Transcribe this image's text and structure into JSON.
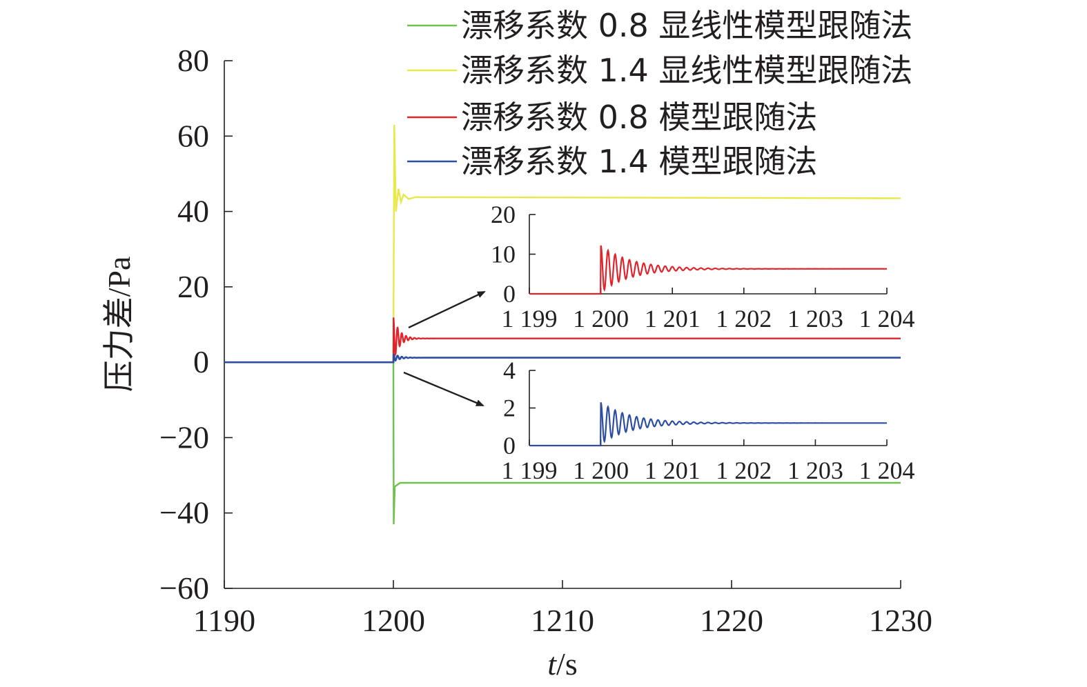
{
  "chart_data": [
    {
      "type": "line",
      "id": "main",
      "xlabel_italic": "t",
      "xlabel_unit": "/s",
      "ylabel": "压力差/Pa",
      "xlim": [
        1190,
        1230
      ],
      "ylim": [
        -60,
        80
      ],
      "xticks": [
        1190,
        1200,
        1210,
        1220,
        1230
      ],
      "yticks": [
        -60,
        -40,
        -20,
        0,
        20,
        40,
        60,
        80
      ],
      "xtick_labels": [
        "1190",
        "1200",
        "1210",
        "1220",
        "1230"
      ],
      "ytick_labels": [
        "−60",
        "−40",
        "−20",
        "0",
        "20",
        "40",
        "60",
        "80"
      ],
      "grid": false,
      "legend_position": "top-right",
      "step_time": 1200,
      "series": [
        {
          "name": "漂移系数 0.8 显线性模型跟随法",
          "color": "#6cc24a",
          "initial": 0,
          "final": -32,
          "peak": -43,
          "osc_amp": 0
        },
        {
          "name": "漂移系数 1.4 显线性模型跟随法",
          "color": "#e8e84a",
          "initial": 0,
          "final": 43.5,
          "peak": 63,
          "osc_amp": 2.5
        },
        {
          "name": "漂移系数 0.8 模型跟随法",
          "color": "#e0242b",
          "initial": 0,
          "final": 6.3,
          "peak": 12.2,
          "osc_amp": 6
        },
        {
          "name": "漂移系数 1.4 模型跟随法",
          "color": "#2b4ea2",
          "initial": 0,
          "final": 1.2,
          "peak": 2.3,
          "osc_amp": 1.1
        }
      ]
    },
    {
      "type": "line",
      "id": "inset-red",
      "xlim": [
        1199,
        1204
      ],
      "ylim": [
        0,
        20
      ],
      "xticks": [
        1199,
        1200,
        1201,
        1202,
        1203,
        1204
      ],
      "yticks": [
        0,
        10,
        20
      ],
      "xtick_labels": [
        "1 199",
        "1 200",
        "1 201",
        "1 202",
        "1 203",
        "1 204"
      ],
      "ytick_labels": [
        "0",
        "10",
        "20"
      ],
      "series_ref": 2
    },
    {
      "type": "line",
      "id": "inset-blue",
      "xlim": [
        1199,
        1204
      ],
      "ylim": [
        0,
        4
      ],
      "xticks": [
        1199,
        1200,
        1201,
        1202,
        1203,
        1204
      ],
      "yticks": [
        0,
        2,
        4
      ],
      "xtick_labels": [
        "1 199",
        "1 200",
        "1 201",
        "1 202",
        "1 203",
        "1 204"
      ],
      "ytick_labels": [
        "0",
        "2",
        "4"
      ],
      "series_ref": 3
    }
  ]
}
